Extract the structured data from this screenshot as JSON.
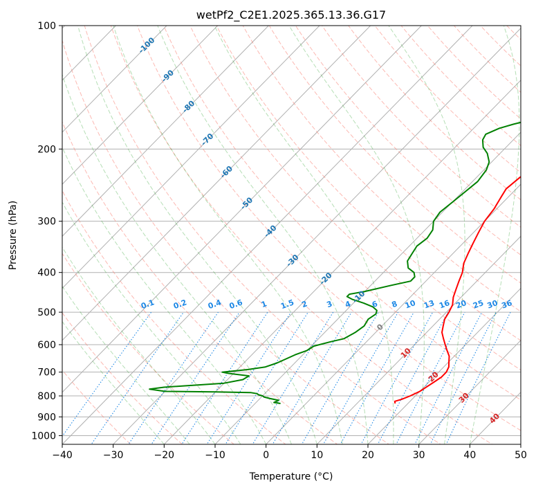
{
  "chart_data": {
    "type": "line",
    "title": "wetPf2_C2E1.2025.365.13.36.G17",
    "xlabel": "Temperature (°C)",
    "ylabel": "Pressure (hPa)",
    "xlim": [
      -40,
      50
    ],
    "ylim": [
      1050,
      100
    ],
    "y_scale": "log",
    "grid": true,
    "x_ticks": [
      -40,
      -30,
      -20,
      -10,
      0,
      10,
      20,
      30,
      40,
      50
    ],
    "y_ticks": [
      100,
      200,
      300,
      400,
      500,
      600,
      700,
      800,
      900,
      1000
    ],
    "skew_label_values": [
      -100,
      -90,
      -80,
      -70,
      -60,
      -50,
      -40,
      -30,
      -20,
      -10,
      0,
      10,
      20,
      30,
      40
    ],
    "mixing_ratio_values": [
      "0.1",
      "0.2",
      "0.4",
      "0.6",
      "1",
      "1.5",
      "2",
      "3",
      "4",
      "6",
      "8",
      "10",
      "13",
      "16",
      "20",
      "25",
      "30",
      "36"
    ],
    "colors": {
      "temperature": "#ff0000",
      "dewpoint": "#008000",
      "isotherm_label": "#1f77b4",
      "warm_label": "#d62728",
      "zero_label": "#808080",
      "mixing_ratio": "#1e88e5",
      "dry_adiabat": "#fa8072",
      "moist_adiabat": "#2ca02c",
      "grid": "#b0b0b0"
    },
    "series": [
      {
        "name": "",
        "kind": "temperature",
        "points": [
          [
            17.5,
            835
          ],
          [
            17,
            825
          ],
          [
            18,
            815
          ],
          [
            19,
            800
          ],
          [
            20,
            780
          ],
          [
            20.5,
            760
          ],
          [
            21,
            740
          ],
          [
            21.5,
            720
          ],
          [
            21.5,
            700
          ],
          [
            21,
            680
          ],
          [
            20,
            660
          ],
          [
            19,
            640
          ],
          [
            17.5,
            620
          ],
          [
            16,
            600
          ],
          [
            14.5,
            580
          ],
          [
            13,
            560
          ],
          [
            12,
            540
          ],
          [
            11,
            520
          ],
          [
            10.5,
            500
          ],
          [
            9.8,
            480
          ],
          [
            8.5,
            460
          ],
          [
            7.5,
            440
          ],
          [
            6.5,
            420
          ],
          [
            5.5,
            400
          ],
          [
            4,
            380
          ],
          [
            3,
            360
          ],
          [
            2,
            340
          ],
          [
            1,
            320
          ],
          [
            0,
            300
          ],
          [
            -0.5,
            280
          ],
          [
            -1,
            270
          ],
          [
            -1.5,
            260
          ],
          [
            -2,
            250
          ],
          [
            -1.5,
            235
          ],
          [
            -1,
            225
          ],
          [
            0.5,
            215
          ],
          [
            2,
            208
          ],
          [
            4,
            200
          ],
          [
            6,
            192
          ],
          [
            7,
            185
          ],
          [
            6.8,
            175
          ],
          [
            6.5,
            165
          ],
          [
            6.3,
            155
          ],
          [
            6,
            145
          ],
          [
            7,
            138
          ],
          [
            9,
            130
          ],
          [
            10.5,
            124
          ],
          [
            12,
            118
          ],
          [
            12.2,
            112
          ],
          [
            12,
            107
          ],
          [
            13,
            103
          ],
          [
            15,
            100
          ]
        ]
      },
      {
        "name": "",
        "kind": "dewpoint",
        "points": [
          [
            -5,
            835
          ],
          [
            -6.5,
            830
          ],
          [
            -6,
            820
          ],
          [
            -8,
            812
          ],
          [
            -9.5,
            805
          ],
          [
            -10,
            800
          ],
          [
            -11,
            795
          ],
          [
            -11.5,
            790
          ],
          [
            -13,
            785
          ],
          [
            -20,
            782
          ],
          [
            -30,
            780
          ],
          [
            -33.5,
            770
          ],
          [
            -31,
            762
          ],
          [
            -20,
            745
          ],
          [
            -17,
            730
          ],
          [
            -16.5,
            715
          ],
          [
            -21,
            705
          ],
          [
            -22.5,
            700
          ],
          [
            -18,
            690
          ],
          [
            -15,
            680
          ],
          [
            -13.5,
            665
          ],
          [
            -12.5,
            650
          ],
          [
            -11.5,
            635
          ],
          [
            -10,
            620
          ],
          [
            -9.5,
            605
          ],
          [
            -7,
            590
          ],
          [
            -5,
            580
          ],
          [
            -4,
            560
          ],
          [
            -3.5,
            540
          ],
          [
            -4,
            520
          ],
          [
            -3.5,
            505
          ],
          [
            -4,
            495
          ],
          [
            -5.5,
            485
          ],
          [
            -8,
            475
          ],
          [
            -11,
            465
          ],
          [
            -12.5,
            458
          ],
          [
            -12.5,
            452
          ],
          [
            -10,
            445
          ],
          [
            -6,
            430
          ],
          [
            -3,
            420
          ],
          [
            -3,
            410
          ],
          [
            -4,
            400
          ],
          [
            -6,
            390
          ],
          [
            -7.5,
            375
          ],
          [
            -8,
            360
          ],
          [
            -8.5,
            345
          ],
          [
            -8,
            330
          ],
          [
            -8.5,
            315
          ],
          [
            -10,
            300
          ],
          [
            -10.5,
            285
          ],
          [
            -10,
            270
          ],
          [
            -9.5,
            255
          ],
          [
            -9,
            240
          ],
          [
            -9.5,
            225
          ],
          [
            -10.5,
            215
          ],
          [
            -12.5,
            205
          ],
          [
            -14.5,
            198
          ],
          [
            -16,
            190
          ],
          [
            -16.5,
            184
          ],
          [
            -15,
            178
          ],
          [
            -13,
            174
          ],
          [
            -10.5,
            170
          ],
          [
            -9,
            165
          ],
          [
            -8,
            155
          ],
          [
            -8,
            145
          ],
          [
            -8.5,
            135
          ],
          [
            -8.5,
            125
          ],
          [
            -7.5,
            118
          ],
          [
            -6.5,
            113
          ],
          [
            -6,
            108
          ],
          [
            -5,
            104
          ],
          [
            -4.5,
            100
          ]
        ]
      }
    ]
  }
}
